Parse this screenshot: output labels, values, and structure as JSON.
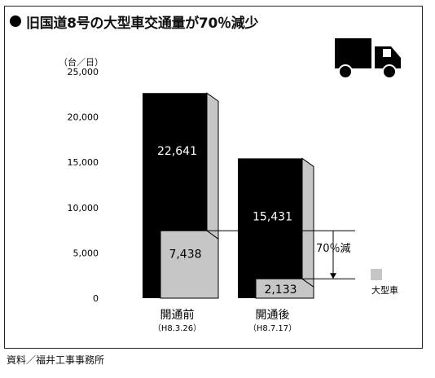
{
  "title": "旧国道8号の大型車交通量が70％減少",
  "unit": "（台／日）",
  "source": "資料／福井工事事務所",
  "reduction_label": "70％減",
  "legend_label": "大型車",
  "icon": "truck-icon",
  "colors": {
    "total_bar": "#000000",
    "large_vehicle_bar": "#c6c6c6",
    "bar_side": "#c6c6c6",
    "text_on_dark": "#ffffff"
  },
  "chart_data": {
    "type": "bar",
    "categories": [
      {
        "label": "開通前",
        "sublabel": "（H8.3.26）"
      },
      {
        "label": "開通後",
        "sublabel": "（H8.7.17）"
      }
    ],
    "series": [
      {
        "values": [
          22641,
          15431
        ],
        "value_labels": [
          "22,641",
          "15,431"
        ]
      },
      {
        "name": "大型車",
        "values": [
          7438,
          2133
        ],
        "value_labels": [
          "7,438",
          "2,133"
        ]
      }
    ],
    "y_ticks": [
      "25,000",
      "20,000",
      "15,000",
      "10,000",
      "5,000",
      "0"
    ],
    "y_tick_values": [
      25000,
      20000,
      15000,
      10000,
      5000,
      0
    ],
    "ylim": [
      0,
      25000
    ],
    "grid": false,
    "legend_position": "bottom-right"
  }
}
